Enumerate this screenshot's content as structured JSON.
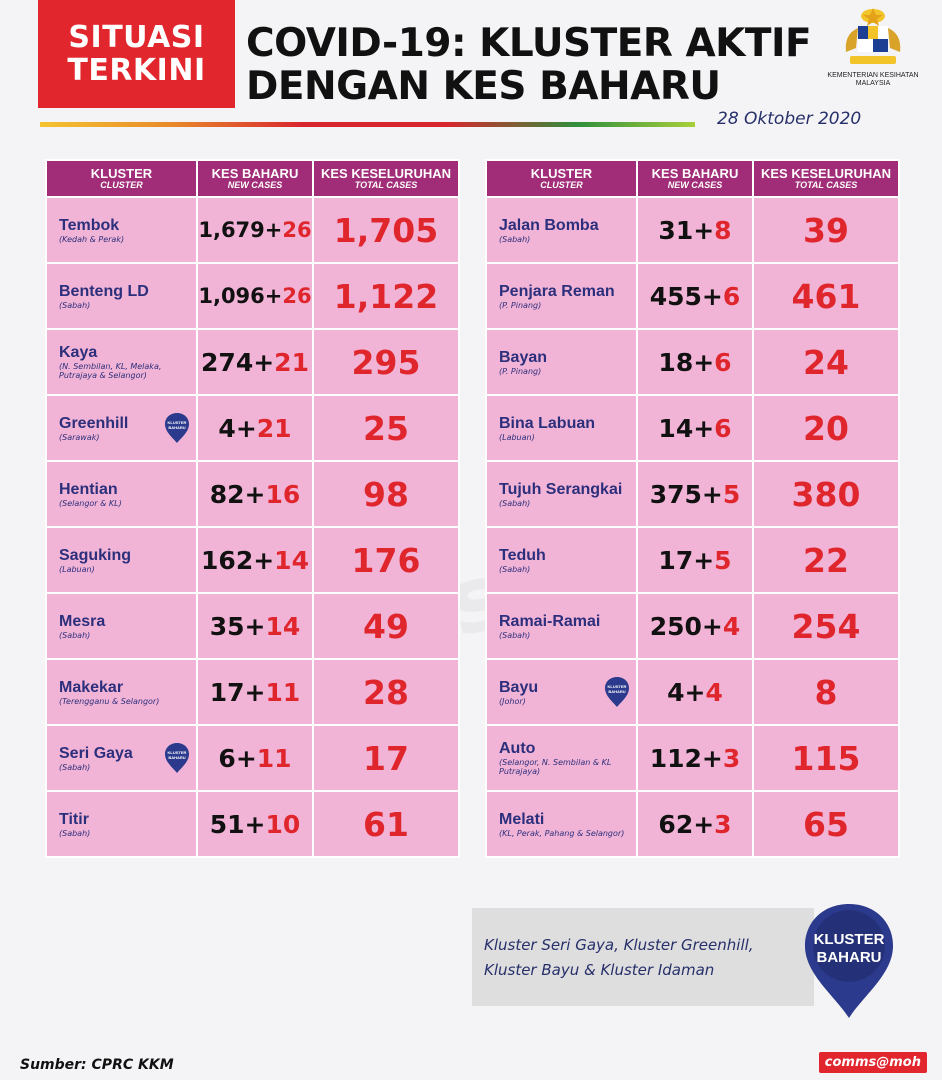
{
  "header": {
    "badge_line1": "SITUASI",
    "badge_line2": "TERKINI",
    "title_line1": "COVID-19: KLUSTER AKTIF",
    "title_line2": "DENGAN KES BAHARU",
    "date": "28 Oktober 2020",
    "ministry_line1": "KEMENTERIAN KESIHATAN",
    "ministry_line2": "MALAYSIA"
  },
  "columns": {
    "cluster": "KLUSTER",
    "cluster_sub": "CLUSTER",
    "new": "KES BAHARU",
    "new_sub": "NEW CASES",
    "total": "KES KESELURUHAN",
    "total_sub": "TOTAL CASES"
  },
  "left_rows": [
    {
      "name": "Tembok",
      "location": "(Kedah & Perak)",
      "base": "1,679+",
      "inc": "26",
      "total": "1,705",
      "pin": false
    },
    {
      "name": "Benteng LD",
      "location": "(Sabah)",
      "base": "1,096+",
      "inc": "26",
      "total": "1,122",
      "pin": false
    },
    {
      "name": "Kaya",
      "location": "(N. Sembilan, KL, Melaka, Putrajaya & Selangor)",
      "base": "274+",
      "inc": "21",
      "total": "295",
      "pin": false
    },
    {
      "name": "Greenhill",
      "location": "(Sarawak)",
      "base": "4+",
      "inc": "21",
      "total": "25",
      "pin": true
    },
    {
      "name": "Hentian",
      "location": "(Selangor & KL)",
      "base": "82+",
      "inc": "16",
      "total": "98",
      "pin": false
    },
    {
      "name": "Saguking",
      "location": "(Labuan)",
      "base": "162+",
      "inc": "14",
      "total": "176",
      "pin": false
    },
    {
      "name": "Mesra",
      "location": "(Sabah)",
      "base": "35+",
      "inc": "14",
      "total": "49",
      "pin": false
    },
    {
      "name": "Makekar",
      "location": "(Terengganu & Selangor)",
      "base": "17+",
      "inc": "11",
      "total": "28",
      "pin": false
    },
    {
      "name": "Seri Gaya",
      "location": "(Sabah)",
      "base": "6+",
      "inc": "11",
      "total": "17",
      "pin": true
    },
    {
      "name": "Titir",
      "location": "(Sabah)",
      "base": "51+",
      "inc": "10",
      "total": "61",
      "pin": false
    }
  ],
  "right_rows": [
    {
      "name": "Jalan Bomba",
      "location": "(Sabah)",
      "base": "31+",
      "inc": "8",
      "total": "39",
      "pin": false
    },
    {
      "name": "Penjara Reman",
      "location": "(P. Pinang)",
      "base": "455+",
      "inc": "6",
      "total": "461",
      "pin": false
    },
    {
      "name": "Bayan",
      "location": "(P. Pinang)",
      "base": "18+",
      "inc": "6",
      "total": "24",
      "pin": false
    },
    {
      "name": "Bina Labuan",
      "location": "(Labuan)",
      "base": "14+",
      "inc": "6",
      "total": "20",
      "pin": false
    },
    {
      "name": "Tujuh Serangkai",
      "location": "(Sabah)",
      "base": "375+",
      "inc": "5",
      "total": "380",
      "pin": false
    },
    {
      "name": "Teduh",
      "location": "(Sabah)",
      "base": "17+",
      "inc": "5",
      "total": "22",
      "pin": false
    },
    {
      "name": "Ramai-Ramai",
      "location": "(Sabah)",
      "base": "250+",
      "inc": "4",
      "total": "254",
      "pin": false
    },
    {
      "name": "Bayu",
      "location": "(Johor)",
      "base": "4+",
      "inc": "4",
      "total": "8",
      "pin": true
    },
    {
      "name": "Auto",
      "location": "(Selangor, N. Sembilan & KL Putrajaya)",
      "base": "112+",
      "inc": "3",
      "total": "115",
      "pin": false
    },
    {
      "name": "Melati",
      "location": "(KL, Perak, Pahang & Selangor)",
      "base": "62+",
      "inc": "3",
      "total": "65",
      "pin": false
    }
  ],
  "pin_label_line1": "KLUSTER",
  "pin_label_line2": "BAHARU",
  "note": {
    "line1": "Kluster Seri Gaya, Kluster Greenhill,",
    "line2": "Kluster Bayu & Kluster Idaman"
  },
  "footer": {
    "source": "Sumber: CPRC KKM",
    "tag": "comms@moh",
    "watermark": "comms@moh"
  },
  "colors": {
    "red": "#e2262e",
    "header_purple": "#a12c77",
    "row_pink": "#f2b4d6",
    "navy": "#2c2f7c"
  }
}
